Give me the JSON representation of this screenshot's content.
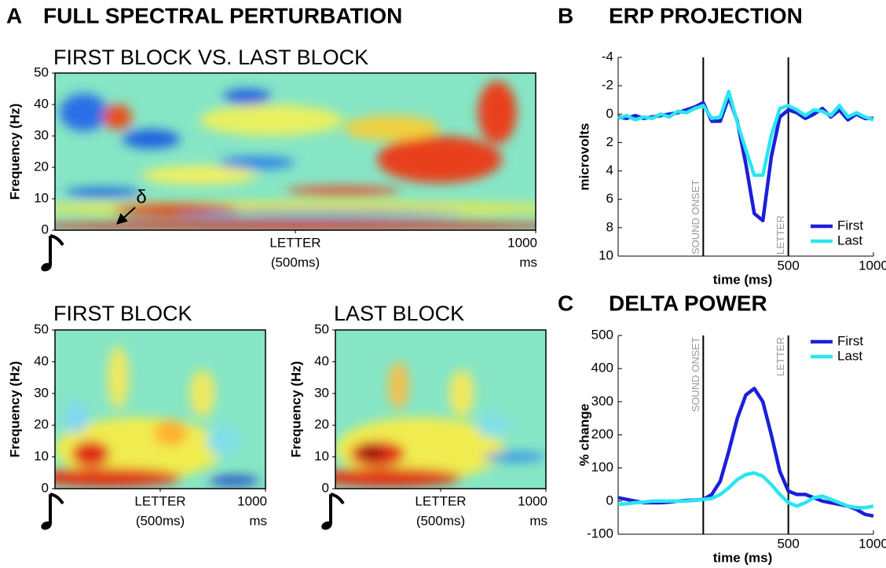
{
  "chart_data": [
    {
      "type": "heatmap",
      "panel_label": "A",
      "title": "FULL SPECTRAL PERTURBATION",
      "subtitle": "FIRST BLOCK VS. LAST BLOCK",
      "ylabel": "Frequency (Hz)",
      "ylim": [
        0,
        50
      ],
      "yticks": [
        0,
        10,
        20,
        30,
        40,
        50
      ],
      "xlim": [
        0,
        1000
      ],
      "xticks": [
        {
          "value": 500,
          "label": "LETTER",
          "sublabel": "(500ms)"
        },
        {
          "value": 1000,
          "label": "1000",
          "sublabel": "ms"
        }
      ],
      "annotation": "δ"
    },
    {
      "type": "heatmap",
      "subtitle": "FIRST BLOCK",
      "ylabel": "Frequency (Hz)",
      "ylim": [
        0,
        50
      ],
      "yticks": [
        0,
        10,
        20,
        30,
        40,
        50
      ],
      "xlim": [
        0,
        1000
      ],
      "xticks": [
        {
          "value": 500,
          "label": "LETTER",
          "sublabel": "(500ms)"
        },
        {
          "value": 1000,
          "label": "1000",
          "sublabel": "ms"
        }
      ]
    },
    {
      "type": "heatmap",
      "subtitle": "LAST BLOCK",
      "ylabel": "Frequency (Hz)",
      "ylim": [
        0,
        50
      ],
      "yticks": [
        0,
        10,
        20,
        30,
        40,
        50
      ],
      "xlim": [
        0,
        1000
      ],
      "xticks": [
        {
          "value": 500,
          "label": "LETTER",
          "sublabel": "(500ms)"
        },
        {
          "value": 1000,
          "label": "1000",
          "sublabel": "ms"
        }
      ]
    },
    {
      "type": "line",
      "panel_label": "B",
      "title": "ERP PROJECTION",
      "ylabel": "microvolts",
      "xlabel": "time (ms)",
      "xlim": [
        -500,
        1000
      ],
      "xticks": [
        500,
        1000
      ],
      "ylim": [
        -4,
        10
      ],
      "y_inverted": true,
      "yticks": [
        -4,
        -2,
        0,
        2,
        4,
        6,
        8,
        10
      ],
      "legend": "lower right",
      "vlines": [
        {
          "value": 0,
          "label": "SOUND ONSET"
        },
        {
          "value": 500,
          "label": "LETTER"
        }
      ],
      "x": [
        -500,
        -450,
        -400,
        -350,
        -300,
        -250,
        -200,
        -150,
        -100,
        -50,
        0,
        50,
        100,
        150,
        200,
        250,
        300,
        350,
        400,
        450,
        500,
        550,
        600,
        650,
        700,
        750,
        800,
        850,
        900,
        950,
        1000
      ],
      "series": [
        {
          "name": "First",
          "color": "#1c1fd8",
          "values": [
            0.2,
            0.3,
            0.1,
            0.3,
            0.2,
            0.1,
            0,
            -0.1,
            -0.3,
            -0.5,
            -0.8,
            0.5,
            0.5,
            -1.2,
            0.5,
            3.5,
            7,
            7.5,
            3,
            0.2,
            -0.3,
            -0.1,
            0.3,
            0,
            -0.4,
            0.2,
            -0.3,
            0.4,
            0,
            0.3,
            0.3
          ]
        },
        {
          "name": "Last",
          "color": "#2ae6f0",
          "values": [
            0.3,
            0.1,
            0.4,
            0.2,
            0.3,
            0,
            0.2,
            -0.2,
            -0.1,
            -0.4,
            -0.6,
            0.3,
            0.2,
            -1.6,
            0.6,
            2.5,
            4.3,
            4.3,
            1.5,
            -0.4,
            -0.6,
            -0.3,
            0.1,
            -0.3,
            -0.2,
            0.1,
            -0.6,
            0.2,
            -0.1,
            0.2,
            0.4
          ]
        }
      ]
    },
    {
      "type": "line",
      "panel_label": "C",
      "title": "DELTA POWER",
      "ylabel": "% change",
      "xlabel": "time (ms)",
      "xlim": [
        -500,
        1000
      ],
      "xticks": [
        500,
        1000
      ],
      "ylim": [
        -100,
        500
      ],
      "yticks": [
        -100,
        0,
        100,
        200,
        300,
        400,
        500
      ],
      "legend": "upper right",
      "vlines": [
        {
          "value": 0,
          "label": "SOUND ONSET"
        },
        {
          "value": 500,
          "label": "LETTER"
        }
      ],
      "x": [
        -500,
        -450,
        -400,
        -350,
        -300,
        -250,
        -200,
        -150,
        -100,
        -50,
        0,
        50,
        100,
        150,
        200,
        250,
        300,
        350,
        400,
        450,
        500,
        550,
        600,
        650,
        700,
        750,
        800,
        850,
        900,
        950,
        1000
      ],
      "series": [
        {
          "name": "First",
          "color": "#1c1fd8",
          "values": [
            10,
            5,
            0,
            -5,
            -5,
            -5,
            -3,
            0,
            2,
            3,
            5,
            20,
            60,
            150,
            250,
            320,
            340,
            300,
            200,
            90,
            30,
            20,
            20,
            10,
            0,
            -5,
            -10,
            -15,
            -25,
            -40,
            -45
          ]
        },
        {
          "name": "Last",
          "color": "#2ae6f0",
          "values": [
            -10,
            -8,
            -5,
            -3,
            0,
            0,
            0,
            0,
            0,
            2,
            5,
            8,
            20,
            40,
            65,
            80,
            85,
            75,
            50,
            20,
            -5,
            -15,
            -5,
            10,
            15,
            5,
            -5,
            -15,
            -20,
            -20,
            -15
          ]
        }
      ]
    }
  ]
}
